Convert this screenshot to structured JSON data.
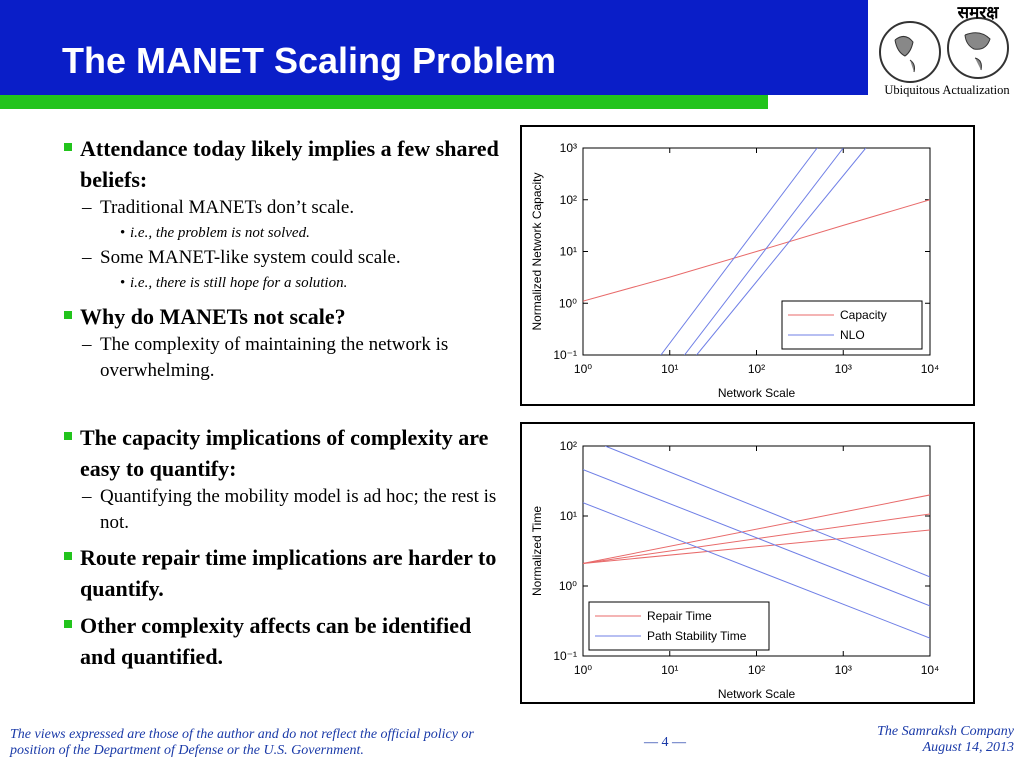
{
  "header": {
    "title": "The MANET Scaling Problem",
    "logo_title": "समरक्ष",
    "logo_subtitle": "Ubiquitous Actualization"
  },
  "bullets": [
    {
      "text": "Attendance today likely implies a few shared beliefs:",
      "subs": [
        {
          "text": "Traditional MANETs don’t scale.",
          "subs": [
            {
              "text": "i.e., the problem is not solved."
            }
          ]
        },
        {
          "text": "Some MANET-like system could scale.",
          "subs": [
            {
              "text": "i.e., there is still hope for a solution."
            }
          ]
        }
      ]
    },
    {
      "text": "Why do MANETs not scale?",
      "subs": [
        {
          "text": "The complexity of maintaining the network is overwhelming."
        }
      ]
    },
    {
      "text": "The capacity implications of complexity are easy to quantify:",
      "subs": [
        {
          "text": "Quantifying the mobility model is ad hoc; the rest is not."
        }
      ]
    },
    {
      "text": "Route repair time implications are harder to quantify."
    },
    {
      "text": "Other complexity affects can be identified and quantified."
    }
  ],
  "footer": {
    "disclaimer": "The views expressed are those of the author and do not reflect the official policy or position of the Department of Defense or the U.S. Government.",
    "page": "— 4 —",
    "company": "The Samraksh Company",
    "date": "August 14, 2013"
  },
  "chart_data": [
    {
      "type": "line",
      "xlabel": "Network Scale",
      "ylabel": "Normalized Network Capacity",
      "xscale": "log",
      "yscale": "log",
      "xlim": [
        1,
        10000
      ],
      "ylim": [
        0.1,
        1000
      ],
      "xticks": [
        {
          "value": 1,
          "label": "10⁰"
        },
        {
          "value": 10,
          "label": "10¹"
        },
        {
          "value": 100,
          "label": "10²"
        },
        {
          "value": 1000,
          "label": "10³"
        },
        {
          "value": 10000,
          "label": "10⁴"
        }
      ],
      "yticks": [
        {
          "value": 0.1,
          "label": "10⁻¹"
        },
        {
          "value": 1,
          "label": "10⁰"
        },
        {
          "value": 10,
          "label": "10¹"
        },
        {
          "value": 100,
          "label": "10²"
        },
        {
          "value": 1000,
          "label": "10³"
        }
      ],
      "legend": "lower right",
      "series": [
        {
          "name": "Capacity",
          "color": "#e86a6a",
          "x": [
            1,
            10,
            100,
            1000,
            10000
          ],
          "values": [
            1.1,
            3.2,
            10,
            32,
            100
          ]
        },
        {
          "name": "NLO",
          "color": "#6f7fe6",
          "x": [
            7.9,
            500
          ],
          "values": [
            0.1,
            1000
          ]
        },
        {
          "color": "#6f7fe6",
          "x": [
            14.8,
            1000
          ],
          "values": [
            0.1,
            1000
          ]
        },
        {
          "color": "#6f7fe6",
          "x": [
            20.4,
            1820
          ],
          "values": [
            0.1,
            1000
          ]
        }
      ]
    },
    {
      "type": "line",
      "xlabel": "Network Scale",
      "ylabel": "Normalized Time",
      "xscale": "log",
      "yscale": "log",
      "xlim": [
        1,
        10000
      ],
      "ylim": [
        0.1,
        100
      ],
      "xticks": [
        {
          "value": 1,
          "label": "10⁰"
        },
        {
          "value": 10,
          "label": "10¹"
        },
        {
          "value": 100,
          "label": "10²"
        },
        {
          "value": 1000,
          "label": "10³"
        },
        {
          "value": 10000,
          "label": "10⁴"
        }
      ],
      "yticks": [
        {
          "value": 0.1,
          "label": "10⁻¹"
        },
        {
          "value": 1,
          "label": "10⁰"
        },
        {
          "value": 10,
          "label": "10¹"
        },
        {
          "value": 100,
          "label": "10²"
        }
      ],
      "legend": "lower left",
      "series": [
        {
          "name": "Repair Time",
          "color": "#e86a6a",
          "x": [
            1,
            10000
          ],
          "values": [
            2.1,
            20
          ]
        },
        {
          "color": "#e86a6a",
          "x": [
            1,
            10000
          ],
          "values": [
            2.1,
            10.7
          ]
        },
        {
          "color": "#e86a6a",
          "x": [
            1,
            10000
          ],
          "values": [
            2.1,
            6.3
          ]
        },
        {
          "name": "Path Stability Time",
          "color": "#6f7fe6",
          "x": [
            1.8,
            10000
          ],
          "values": [
            100,
            1.35
          ]
        },
        {
          "color": "#6f7fe6",
          "x": [
            1,
            10000
          ],
          "values": [
            46,
            0.52
          ]
        },
        {
          "color": "#6f7fe6",
          "x": [
            1,
            10000
          ],
          "values": [
            15.5,
            0.18
          ]
        }
      ]
    }
  ]
}
